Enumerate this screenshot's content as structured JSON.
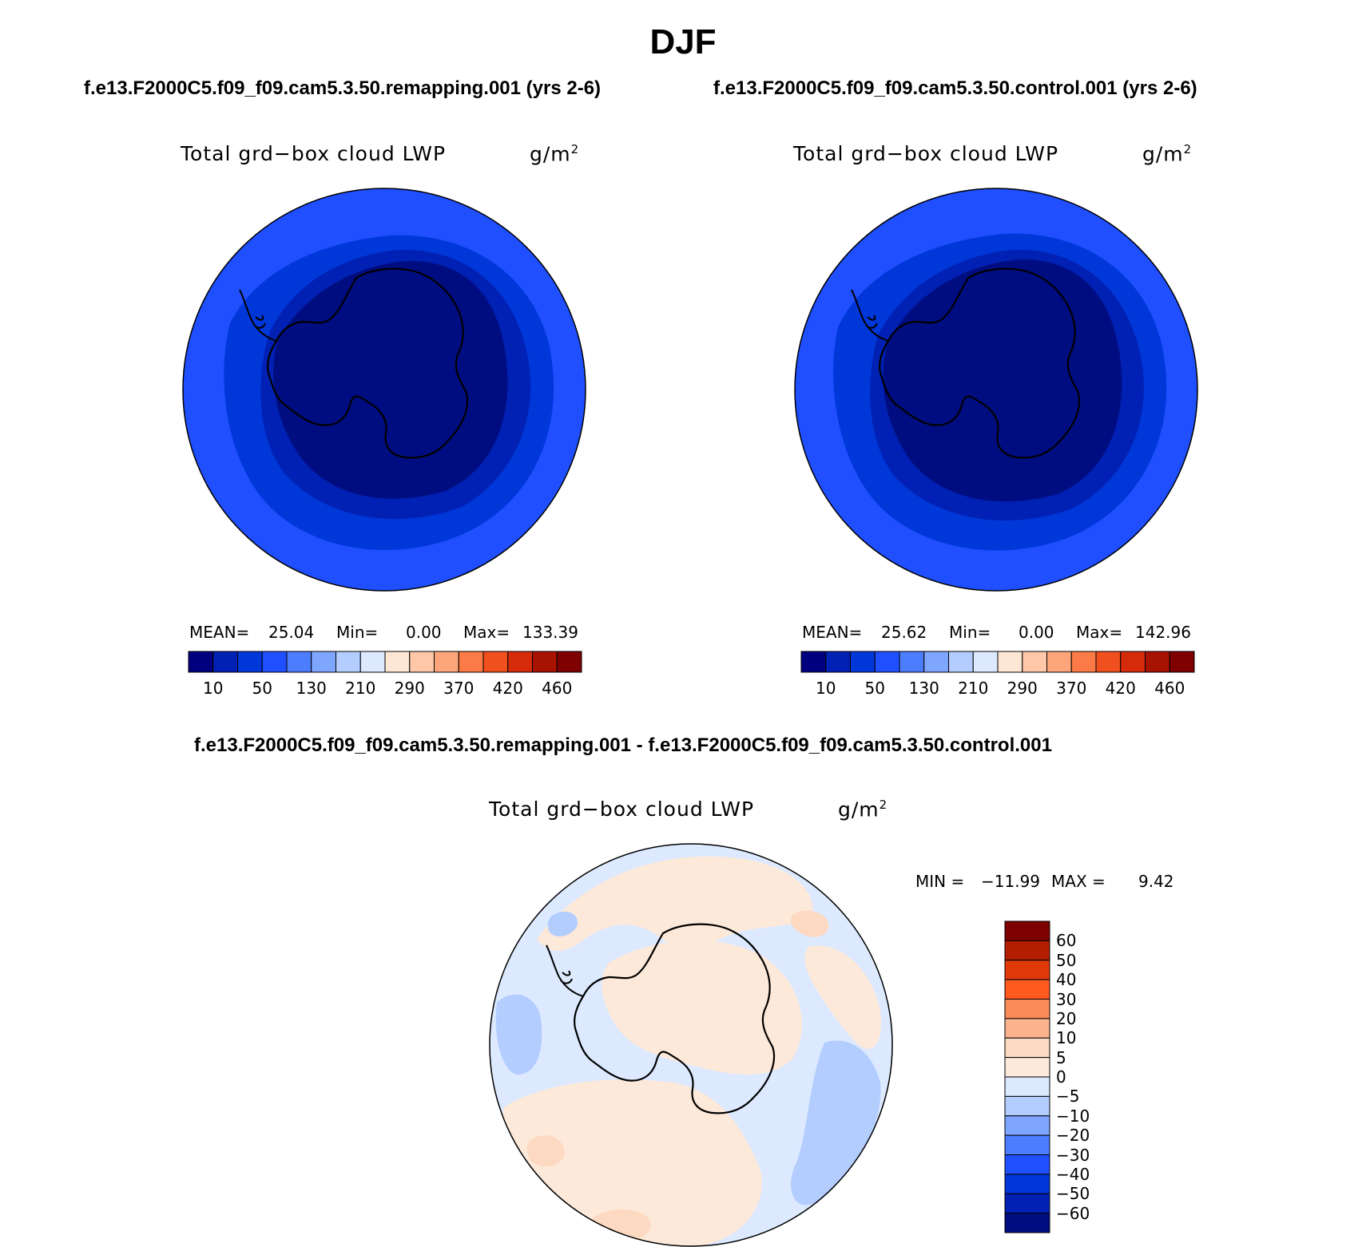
{
  "page": {
    "season": "DJF",
    "case_left": "f.e13.F2000C5.f09_f09.cam5.3.50.remapping.001 (yrs 2-6)",
    "case_right": "f.e13.F2000C5.f09_f09.cam5.3.50.control.001 (yrs 2-6)",
    "diff_title": "f.e13.F2000C5.f09_f09.cam5.3.50.remapping.001 - f.e13.F2000C5.f09_f09.cam5.3.50.control.001"
  },
  "panels": {
    "left": {
      "variable": "Total grd−box cloud LWP",
      "units_base": "g/m",
      "units_exp": "2",
      "mean_label": "MEAN=",
      "mean": "25.04",
      "min_label": "Min=",
      "min": "0.00",
      "max_label": "Max=",
      "max": "133.39"
    },
    "right": {
      "variable": "Total grd−box cloud LWP",
      "units_base": "g/m",
      "units_exp": "2",
      "mean_label": "MEAN=",
      "mean": "25.62",
      "min_label": "Min=",
      "min": "0.00",
      "max_label": "Max=",
      "max": "142.96"
    },
    "diff": {
      "variable": "Total grd−box cloud LWP",
      "units_base": "g/m",
      "units_exp": "2",
      "min_label": "MIN =",
      "min": "−11.99",
      "max_label": "MAX =",
      "max": "9.42"
    }
  },
  "colorbar_abs": {
    "colors": [
      "#00007f",
      "#0021b3",
      "#0037d9",
      "#1f4fff",
      "#4d7dff",
      "#7fa6ff",
      "#b3cdff",
      "#dce9ff",
      "#fde7d4",
      "#fdc7a8",
      "#fca57a",
      "#fb7a45",
      "#f04f1e",
      "#d52b0a",
      "#a81200",
      "#7f0000"
    ],
    "labels": [
      "10",
      "50",
      "130",
      "210",
      "290",
      "370",
      "420",
      "460"
    ]
  },
  "colorbar_diff": {
    "colors": [
      "#7f0000",
      "#b31e00",
      "#e03a0a",
      "#ff5a1f",
      "#fc8b5a",
      "#fdb38e",
      "#fdd9c1",
      "#fde9d9",
      "#dce9ff",
      "#b3cdff",
      "#7fa6ff",
      "#4d7dff",
      "#1f4fff",
      "#0037d9",
      "#0021b3",
      "#000d80"
    ],
    "labels": [
      "60",
      "50",
      "40",
      "30",
      "20",
      "10",
      "5",
      "0",
      "−5",
      "−10",
      "−20",
      "−30",
      "−40",
      "−50",
      "−60"
    ]
  },
  "map_colors": {
    "outer_blue": "#1f4fff",
    "mid_blue": "#0037d9",
    "inner_blue": "#0021b3",
    "core_blue": "#000d80",
    "diff_neg": "#dce9ff",
    "diff_neg2": "#b3cdff",
    "diff_pos": "#fde9d9",
    "diff_pos2": "#fdd9c1"
  }
}
